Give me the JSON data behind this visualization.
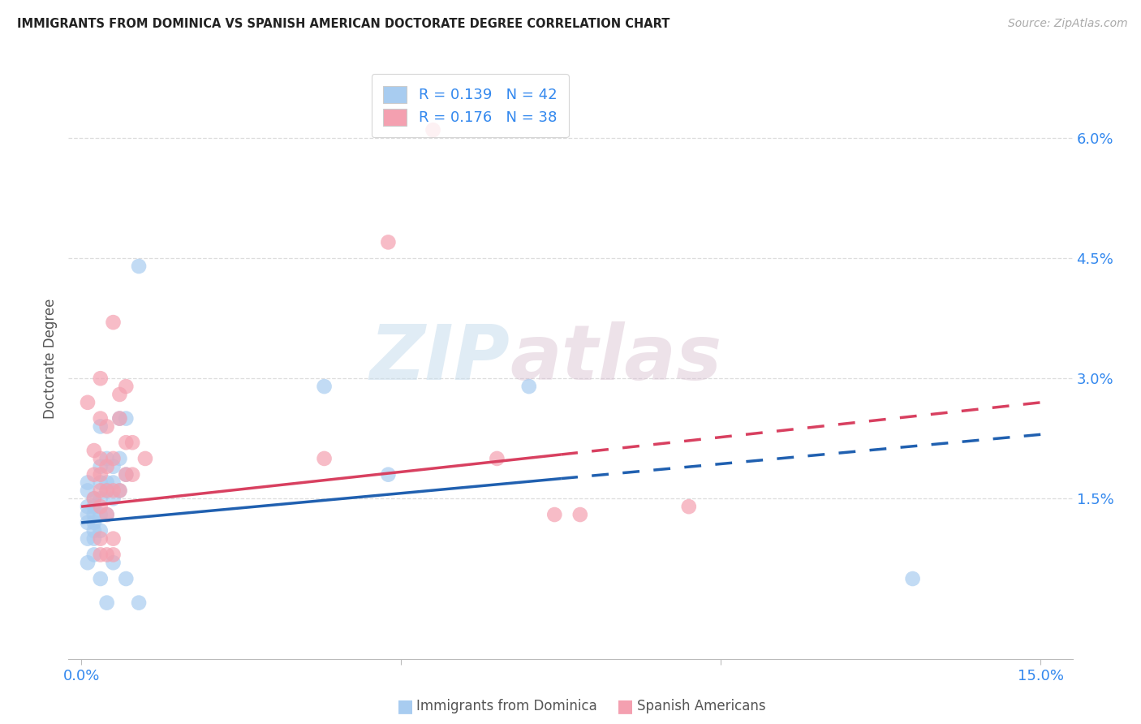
{
  "title": "IMMIGRANTS FROM DOMINICA VS SPANISH AMERICAN DOCTORATE DEGREE CORRELATION CHART",
  "source": "Source: ZipAtlas.com",
  "ylabel": "Doctorate Degree",
  "yticks": [
    0.015,
    0.03,
    0.045,
    0.06
  ],
  "ytick_labels": [
    "1.5%",
    "3.0%",
    "4.5%",
    "6.0%"
  ],
  "xticks": [
    0.0,
    0.05,
    0.1,
    0.15
  ],
  "xtick_labels": [
    "0.0%",
    "",
    "",
    "15.0%"
  ],
  "xlim": [
    -0.002,
    0.155
  ],
  "ylim": [
    -0.005,
    0.07
  ],
  "legend_label_blue": "R = 0.139   N = 42",
  "legend_label_pink": "R = 0.176   N = 38",
  "footer_blue": "Immigrants from Dominica",
  "footer_pink": "Spanish Americans",
  "blue_fill": "#A8CCF0",
  "pink_fill": "#F4A0B0",
  "blue_line": "#2060B0",
  "pink_line": "#D84060",
  "watermark_zip": "ZIP",
  "watermark_atlas": "atlas",
  "grid_color": "#DDDDDD",
  "blue_scatter": [
    [
      0.001,
      0.007
    ],
    [
      0.001,
      0.01
    ],
    [
      0.001,
      0.012
    ],
    [
      0.001,
      0.013
    ],
    [
      0.001,
      0.014
    ],
    [
      0.001,
      0.016
    ],
    [
      0.001,
      0.017
    ],
    [
      0.002,
      0.008
    ],
    [
      0.002,
      0.01
    ],
    [
      0.002,
      0.011
    ],
    [
      0.002,
      0.012
    ],
    [
      0.002,
      0.013
    ],
    [
      0.002,
      0.014
    ],
    [
      0.002,
      0.015
    ],
    [
      0.003,
      0.011
    ],
    [
      0.003,
      0.013
    ],
    [
      0.003,
      0.015
    ],
    [
      0.003,
      0.017
    ],
    [
      0.003,
      0.019
    ],
    [
      0.003,
      0.024
    ],
    [
      0.004,
      0.013
    ],
    [
      0.004,
      0.016
    ],
    [
      0.004,
      0.017
    ],
    [
      0.004,
      0.02
    ],
    [
      0.005,
      0.015
    ],
    [
      0.005,
      0.017
    ],
    [
      0.005,
      0.019
    ],
    [
      0.006,
      0.016
    ],
    [
      0.006,
      0.02
    ],
    [
      0.006,
      0.025
    ],
    [
      0.007,
      0.018
    ],
    [
      0.007,
      0.025
    ],
    [
      0.009,
      0.044
    ],
    [
      0.038,
      0.029
    ],
    [
      0.048,
      0.018
    ],
    [
      0.07,
      0.029
    ],
    [
      0.003,
      0.005
    ],
    [
      0.004,
      0.002
    ],
    [
      0.005,
      0.007
    ],
    [
      0.007,
      0.005
    ],
    [
      0.009,
      0.002
    ],
    [
      0.13,
      0.005
    ]
  ],
  "pink_scatter": [
    [
      0.001,
      0.027
    ],
    [
      0.002,
      0.015
    ],
    [
      0.002,
      0.018
    ],
    [
      0.002,
      0.021
    ],
    [
      0.003,
      0.01
    ],
    [
      0.003,
      0.014
    ],
    [
      0.003,
      0.016
    ],
    [
      0.003,
      0.018
    ],
    [
      0.003,
      0.02
    ],
    [
      0.003,
      0.025
    ],
    [
      0.003,
      0.03
    ],
    [
      0.004,
      0.013
    ],
    [
      0.004,
      0.016
    ],
    [
      0.004,
      0.019
    ],
    [
      0.004,
      0.024
    ],
    [
      0.005,
      0.01
    ],
    [
      0.005,
      0.016
    ],
    [
      0.005,
      0.02
    ],
    [
      0.005,
      0.037
    ],
    [
      0.006,
      0.016
    ],
    [
      0.006,
      0.025
    ],
    [
      0.006,
      0.028
    ],
    [
      0.007,
      0.018
    ],
    [
      0.007,
      0.022
    ],
    [
      0.007,
      0.029
    ],
    [
      0.008,
      0.018
    ],
    [
      0.008,
      0.022
    ],
    [
      0.01,
      0.02
    ],
    [
      0.038,
      0.02
    ],
    [
      0.048,
      0.047
    ],
    [
      0.055,
      0.061
    ],
    [
      0.065,
      0.02
    ],
    [
      0.074,
      0.013
    ],
    [
      0.078,
      0.013
    ],
    [
      0.095,
      0.014
    ],
    [
      0.003,
      0.008
    ],
    [
      0.004,
      0.008
    ],
    [
      0.005,
      0.008
    ]
  ]
}
